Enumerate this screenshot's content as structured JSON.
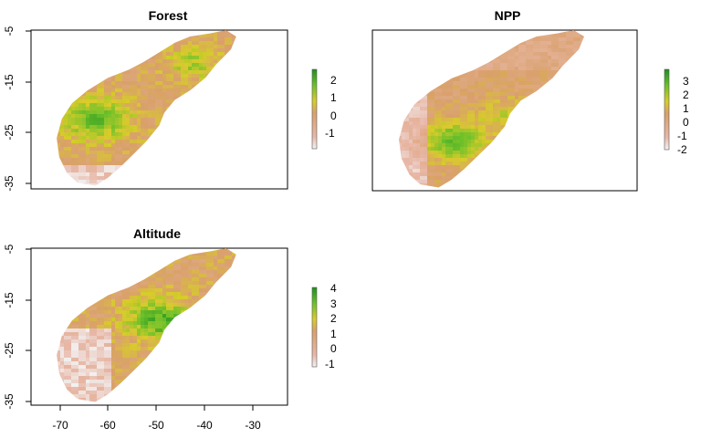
{
  "chart_data": [
    {
      "type": "heatmap",
      "title": "Forest",
      "ylim": [
        -37,
        -4
      ],
      "xlim": [
        -77,
        -24
      ],
      "y_ticks": [
        "-5",
        "-15",
        "-25",
        "-35"
      ],
      "x_ticks": [],
      "legend": {
        "placement": "right",
        "ticks": [
          "2",
          "1",
          "0",
          "-1"
        ],
        "range": [
          -1.5,
          2.5
        ]
      }
    },
    {
      "type": "heatmap",
      "title": "NPP",
      "ylim": [
        -37,
        -4
      ],
      "xlim": [
        -77,
        -24
      ],
      "y_ticks": [],
      "x_ticks": [],
      "legend": {
        "placement": "right",
        "ticks": [
          "3",
          "2",
          "1",
          "0",
          "-1",
          "-2"
        ],
        "range": [
          -2,
          3.5
        ]
      }
    },
    {
      "type": "heatmap",
      "title": "Altitude",
      "ylim": [
        -37,
        -4
      ],
      "xlim": [
        -77,
        -24
      ],
      "y_ticks": [
        "-5",
        "-15",
        "-25",
        "-35"
      ],
      "x_ticks": [
        "-70",
        "-60",
        "-50",
        "-40",
        "-30"
      ],
      "legend": {
        "placement": "right",
        "ticks": [
          "4",
          "3",
          "2",
          "1",
          "0",
          "-1"
        ],
        "range": [
          -1.5,
          4
        ]
      }
    }
  ],
  "colors": {
    "ramp_low": "#f2f2f2",
    "ramp_mid_low": "#e8b8a8",
    "ramp_mid": "#d9a06a",
    "ramp_yellow": "#d8cc2a",
    "ramp_highgreen": "#6cc02a",
    "ramp_high": "#1f8f1f"
  }
}
